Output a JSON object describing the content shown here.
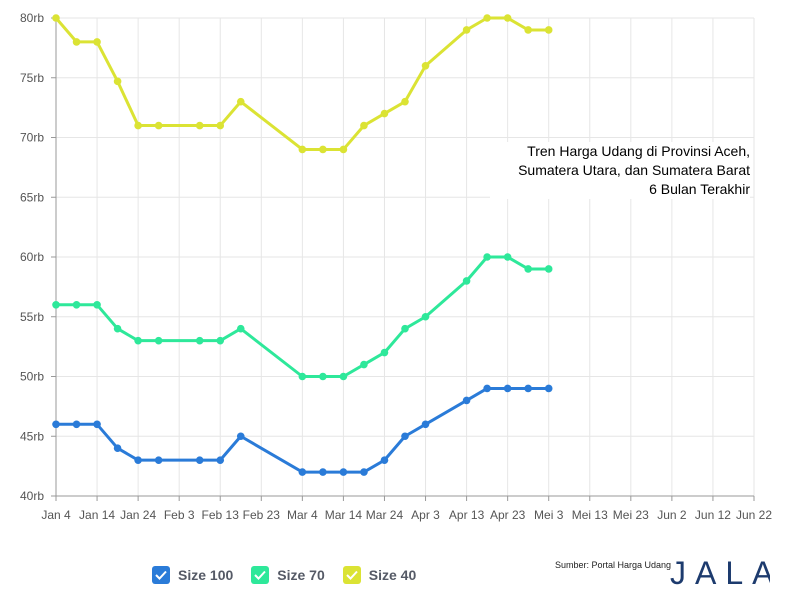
{
  "chart_data": {
    "type": "line",
    "title_lines": [
      "Tren Harga Udang di Provinsi Aceh,",
      "Sumatera Utara, dan Sumatera Barat",
      "6 Bulan Terakhir"
    ],
    "x": [
      "Jan 4",
      "Jan 9",
      "Jan 14",
      "Jan 19",
      "Jan 24",
      "Jan 29",
      "Feb 3",
      "Feb 8",
      "Feb 13",
      "Feb 18",
      "Feb 23",
      "Feb 28",
      "Mar 4",
      "Mar 9",
      "Mar 14",
      "Mar 19",
      "Mar 24",
      "Mar 29",
      "Apr 3",
      "Apr 8",
      "Apr 13",
      "Apr 18",
      "Apr 23",
      "Apr 28",
      "Mei 3",
      "Mei 8",
      "Mei 13",
      "Mei 18",
      "Mei 23",
      "Mei 28",
      "Jun 2",
      "Jun 7",
      "Jun 12",
      "Jun 17",
      "Jun 22"
    ],
    "x_tick_labels": [
      "Jan 4",
      "Jan 14",
      "Jan 24",
      "Feb 3",
      "Feb 13",
      "Feb 23",
      "Mar 4",
      "Mar 14",
      "Mar 24",
      "Apr 3",
      "Apr 13",
      "Apr 23",
      "Mei 3",
      "Mei 13",
      "Mei 23",
      "Jun 2",
      "Jun 12",
      "Jun 22"
    ],
    "y_ticks": [
      40000,
      45000,
      50000,
      55000,
      60000,
      65000,
      70000,
      75000,
      80000
    ],
    "y_tick_labels": [
      "40rb",
      "45rb",
      "50rb",
      "55rb",
      "60rb",
      "65rb",
      "70rb",
      "75rb",
      "80rb"
    ],
    "ylim": [
      40000,
      80000
    ],
    "grid": true,
    "legend_position": "bottom-left",
    "series": [
      {
        "name": "Size 100",
        "color": "#2a7bd8",
        "points": [
          [
            "Jan 4",
            46000
          ],
          [
            "Jan 9",
            46000
          ],
          [
            "Jan 14",
            46000
          ],
          [
            "Jan 19",
            44000
          ],
          [
            "Jan 24",
            43000
          ],
          [
            "Jan 29",
            43000
          ],
          [
            "Feb 8",
            43000
          ],
          [
            "Feb 13",
            43000
          ],
          [
            "Feb 18",
            45000
          ],
          [
            "Mar 4",
            42000
          ],
          [
            "Mar 9",
            42000
          ],
          [
            "Mar 14",
            42000
          ],
          [
            "Mar 19",
            42000
          ],
          [
            "Mar 24",
            43000
          ],
          [
            "Mar 29",
            45000
          ],
          [
            "Apr 3",
            46000
          ],
          [
            "Apr 13",
            48000
          ],
          [
            "Apr 18",
            49000
          ],
          [
            "Apr 23",
            49000
          ],
          [
            "Apr 28",
            49000
          ],
          [
            "Mei 3",
            49000
          ]
        ]
      },
      {
        "name": "Size 70",
        "color": "#2ee89a",
        "points": [
          [
            "Jan 4",
            56000
          ],
          [
            "Jan 9",
            56000
          ],
          [
            "Jan 14",
            56000
          ],
          [
            "Jan 19",
            54000
          ],
          [
            "Jan 24",
            53000
          ],
          [
            "Jan 29",
            53000
          ],
          [
            "Feb 8",
            53000
          ],
          [
            "Feb 13",
            53000
          ],
          [
            "Feb 18",
            54000
          ],
          [
            "Mar 4",
            50000
          ],
          [
            "Mar 9",
            50000
          ],
          [
            "Mar 14",
            50000
          ],
          [
            "Mar 19",
            51000
          ],
          [
            "Mar 24",
            52000
          ],
          [
            "Mar 29",
            54000
          ],
          [
            "Apr 3",
            55000
          ],
          [
            "Apr 13",
            58000
          ],
          [
            "Apr 18",
            60000
          ],
          [
            "Apr 23",
            60000
          ],
          [
            "Apr 28",
            59000
          ],
          [
            "Mei 3",
            59000
          ]
        ]
      },
      {
        "name": "Size 40",
        "color": "#dbe334",
        "points": [
          [
            "Jan 4",
            80000
          ],
          [
            "Jan 9",
            78000
          ],
          [
            "Jan 14",
            78000
          ],
          [
            "Jan 19",
            74700
          ],
          [
            "Jan 24",
            71000
          ],
          [
            "Jan 29",
            71000
          ],
          [
            "Feb 8",
            71000
          ],
          [
            "Feb 13",
            71000
          ],
          [
            "Feb 18",
            73000
          ],
          [
            "Mar 4",
            69000
          ],
          [
            "Mar 9",
            69000
          ],
          [
            "Mar 14",
            69000
          ],
          [
            "Mar 19",
            71000
          ],
          [
            "Mar 24",
            72000
          ],
          [
            "Mar 29",
            73000
          ],
          [
            "Apr 3",
            76000
          ],
          [
            "Apr 13",
            79000
          ],
          [
            "Apr 18",
            80000
          ],
          [
            "Apr 23",
            80000
          ],
          [
            "Apr 28",
            79000
          ],
          [
            "Mei 3",
            79000
          ]
        ]
      }
    ]
  },
  "legend": [
    {
      "label": "Size 100",
      "color": "#2a7bd8"
    },
    {
      "label": "Size 70",
      "color": "#2ee89a"
    },
    {
      "label": "Size 40",
      "color": "#dbe334"
    }
  ],
  "source_text": "Sumber: Portal Harga Udang",
  "logo_text": "JALA",
  "logo_color": "#1d3b6e"
}
